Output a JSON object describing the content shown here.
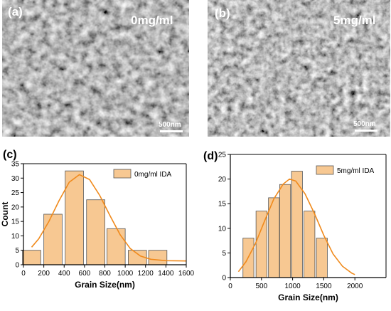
{
  "sem_panels": [
    {
      "id": "a",
      "panel_label": "(a)",
      "concentration_label": "0mg/ml",
      "scale_bar_label": "500nm"
    },
    {
      "id": "b",
      "panel_label": "(b)",
      "concentration_label": "5mg/ml",
      "scale_bar_label": "500nm"
    }
  ],
  "chart_data": [
    {
      "type": "bar",
      "panel_label": "(c)",
      "xlabel": "Grain Size(nm)",
      "ylabel": "Count",
      "xlim": [
        0,
        1600
      ],
      "ylim": [
        0,
        35
      ],
      "xticks": [
        "0",
        "200",
        "400",
        "600",
        "800",
        "1000",
        "1200",
        "1400",
        "1600"
      ],
      "yticks": [
        "0",
        "5",
        "10",
        "15",
        "20",
        "25",
        "30",
        "35"
      ],
      "legend": "0mg/ml IDA",
      "legend_position": "top-right",
      "bin_width": 180,
      "bins": [
        {
          "center": 80,
          "value": 5
        },
        {
          "center": 290,
          "value": 17.5
        },
        {
          "center": 500,
          "value": 32.5
        },
        {
          "center": 710,
          "value": 22.5
        },
        {
          "center": 910,
          "value": 12.5
        },
        {
          "center": 1120,
          "value": 5
        },
        {
          "center": 1320,
          "value": 5
        }
      ],
      "fit_curve": [
        [
          80,
          6.1
        ],
        [
          150,
          9.0
        ],
        [
          250,
          15.0
        ],
        [
          350,
          22.2
        ],
        [
          450,
          28.6
        ],
        [
          550,
          31.2
        ],
        [
          650,
          29.5
        ],
        [
          750,
          24.0
        ],
        [
          850,
          17.0
        ],
        [
          950,
          10.4
        ],
        [
          1050,
          5.6
        ],
        [
          1150,
          3.0
        ],
        [
          1250,
          1.9
        ],
        [
          1400,
          1.4
        ],
        [
          1600,
          1.3
        ]
      ],
      "bar_color": "#f7c892",
      "line_color": "#f08a1c"
    },
    {
      "type": "bar",
      "panel_label": "(d)",
      "xlabel": "Grain Size(nm)",
      "ylabel": "",
      "xlim": [
        0,
        2500
      ],
      "ylim": [
        0,
        25
      ],
      "xticks": [
        "0",
        "500",
        "1000",
        "1500",
        "2000"
      ],
      "yticks": [
        "0",
        "5",
        "10",
        "15",
        "20",
        "25"
      ],
      "legend": "5mg/ml IDA",
      "legend_position": "top-right",
      "bin_width": 175,
      "bins": [
        {
          "center": 290,
          "value": 8
        },
        {
          "center": 500,
          "value": 13.5
        },
        {
          "center": 700,
          "value": 16.2
        },
        {
          "center": 880,
          "value": 18.9
        },
        {
          "center": 1070,
          "value": 21.6
        },
        {
          "center": 1270,
          "value": 13.5
        },
        {
          "center": 1470,
          "value": 8
        }
      ],
      "fit_curve": [
        [
          130,
          1.2
        ],
        [
          250,
          3.2
        ],
        [
          400,
          6.8
        ],
        [
          550,
          11.5
        ],
        [
          700,
          16.0
        ],
        [
          850,
          19.0
        ],
        [
          950,
          20.0
        ],
        [
          1050,
          19.6
        ],
        [
          1200,
          17.0
        ],
        [
          1350,
          13.0
        ],
        [
          1500,
          8.6
        ],
        [
          1650,
          4.8
        ],
        [
          1800,
          2.3
        ],
        [
          1950,
          0.9
        ],
        [
          2000,
          0.6
        ]
      ],
      "bar_color": "#f7c892",
      "line_color": "#f08a1c"
    }
  ]
}
